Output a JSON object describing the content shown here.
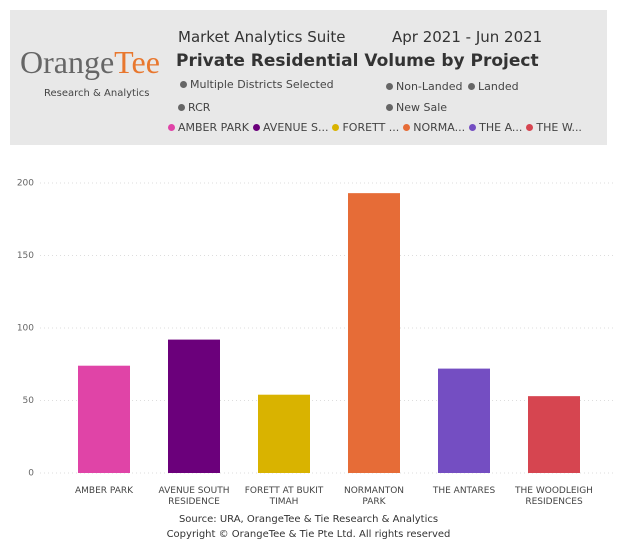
{
  "header": {
    "app_name": "Market Analytics Suite",
    "period": "Apr 2021 - Jun 2021",
    "title": "Private Residential Volume by Project",
    "logo": {
      "parts": [
        "Orange",
        "Tee"
      ],
      "subtitle": "Research & Analytics"
    },
    "filters": [
      "Multiple Districts Selected",
      "Non-Landed",
      "Landed",
      "RCR",
      "New Sale"
    ]
  },
  "chart_data": {
    "type": "bar",
    "categories": [
      "AMBER PARK",
      "AVENUE SOUTH RESIDENCE",
      "FORETT AT BUKIT TIMAH",
      "NORMANTON PARK",
      "THE ANTARES",
      "THE WOODLEIGH RESIDENCES"
    ],
    "legend_labels": [
      "AMBER PARK",
      "AVENUE S...",
      "FORETT ...",
      "NORMA...",
      "THE A...",
      "THE W..."
    ],
    "values": [
      74,
      92,
      54,
      193,
      72,
      53
    ],
    "colors": [
      "#e044a7",
      "#6b007b",
      "#d9b300",
      "#e66c37",
      "#744ec2",
      "#d64550"
    ],
    "ylim": [
      0,
      200
    ],
    "yticks": [
      0,
      50,
      100,
      150,
      200
    ],
    "grid": true
  },
  "footer": [
    "Source: URA, OrangeTee & Tie Research & Analytics",
    "Copyright © OrangeTee & Tie Pte Ltd. All rights reserved"
  ]
}
